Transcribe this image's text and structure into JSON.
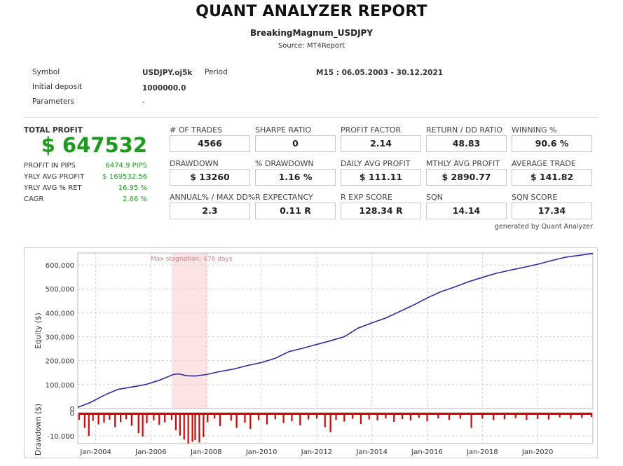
{
  "report": {
    "title": "QUANT ANALYZER REPORT",
    "strategy": "BreakingMagnum_USDJPY",
    "source": "Source: MT4Report"
  },
  "info": {
    "symbol_label": "Symbol",
    "symbol_value": "USDJPY.oj5k",
    "period_label": "Period",
    "period_value": "M15 : 06.05.2003 - 30.12.2021",
    "deposit_label": "Initial deposit",
    "deposit_value": "1000000.0",
    "params_label": "Parameters",
    "params_value": "-"
  },
  "summary": {
    "total_profit_label": "TOTAL PROFIT",
    "total_profit_value": "$ 647532",
    "rows": [
      {
        "label": "PROFIT IN PIPS",
        "value": "6474.9 PIPS"
      },
      {
        "label": "YRLY AVG PROFIT",
        "value": "$ 169532.56"
      },
      {
        "label": "YRLY AVG % RET",
        "value": "16.95 %"
      },
      {
        "label": "CAGR",
        "value": "2.66 %"
      }
    ]
  },
  "metrics": [
    {
      "label": "# OF TRADES",
      "value": "4566"
    },
    {
      "label": "SHARPE RATIO",
      "value": "0"
    },
    {
      "label": "PROFIT FACTOR",
      "value": "2.14"
    },
    {
      "label": "RETURN / DD RATIO",
      "value": "48.83"
    },
    {
      "label": "WINNING %",
      "value": "90.6 %"
    },
    {
      "label": "DRAWDOWN",
      "value": "$ 13260"
    },
    {
      "label": "% DRAWDOWN",
      "value": "1.16 %"
    },
    {
      "label": "DAILY AVG PROFIT",
      "value": "$ 111.11"
    },
    {
      "label": "MTHLY AVG PROFIT",
      "value": "$ 2890.77"
    },
    {
      "label": "AVERAGE TRADE",
      "value": "$ 141.82"
    },
    {
      "label": "ANNUAL% / MAX DD%",
      "value": "2.3"
    },
    {
      "label": "R EXPECTANCY",
      "value": "0.11 R"
    },
    {
      "label": "R EXP SCORE",
      "value": "128.34 R"
    },
    {
      "label": "SQN",
      "value": "14.14"
    },
    {
      "label": "SQN SCORE",
      "value": "17.34"
    }
  ],
  "generated_by": "generated by Quant Analyzer",
  "colors": {
    "profit_green": "#1e9a1e",
    "equity_line": "#2a2aa8",
    "drawdown_fill": "#e00000",
    "stagnation_band": "#fde3e3"
  },
  "chart_data": [
    {
      "type": "line",
      "ylabel": "Equity ($)",
      "ylim": [
        0,
        650000
      ],
      "yticks": [
        0,
        100000,
        200000,
        300000,
        400000,
        500000,
        600000
      ],
      "ytick_labels": [
        "0",
        "100,000",
        "200,000",
        "300,000",
        "400,000",
        "500,000",
        "600,000"
      ],
      "xlim": [
        2003.35,
        2022.0
      ],
      "grid": true,
      "annotation": {
        "text": "Max stagnation: 476 days",
        "start": 2006.75,
        "end": 2008.05
      },
      "x": [
        2003.35,
        2003.8,
        2004.3,
        2004.8,
        2005.3,
        2005.8,
        2006.3,
        2006.8,
        2007.0,
        2007.3,
        2007.6,
        2008.0,
        2008.5,
        2009.0,
        2009.5,
        2010.0,
        2010.5,
        2011.0,
        2011.5,
        2012.0,
        2012.5,
        2013.0,
        2013.5,
        2014.0,
        2014.5,
        2015.0,
        2015.5,
        2016.0,
        2016.5,
        2017.0,
        2017.5,
        2018.0,
        2018.5,
        2019.0,
        2019.5,
        2020.0,
        2020.5,
        2021.0,
        2021.5,
        2022.0
      ],
      "values": [
        5000,
        25000,
        55000,
        80000,
        90000,
        100000,
        118000,
        142000,
        145000,
        137000,
        136000,
        142000,
        155000,
        165000,
        180000,
        192000,
        210000,
        238000,
        252000,
        268000,
        283000,
        300000,
        336000,
        358000,
        378000,
        405000,
        432000,
        462000,
        488000,
        508000,
        530000,
        548000,
        565000,
        578000,
        590000,
        603000,
        618000,
        632000,
        640000,
        648000
      ]
    },
    {
      "type": "area",
      "ylabel": "Drawdown ($)",
      "ylim": [
        -13260,
        0
      ],
      "yticks": [
        0,
        -10000
      ],
      "ytick_labels": [
        "0",
        "-10,000"
      ],
      "xlim": [
        2003.35,
        2022.0
      ],
      "xticks": [
        2004,
        2006,
        2008,
        2010,
        2012,
        2014,
        2016,
        2018,
        2020
      ],
      "xtick_labels": [
        "Jan-2004",
        "Jan-2006",
        "Jan-2008",
        "Jan-2010",
        "Jan-2012",
        "Jan-2014",
        "Jan-2016",
        "Jan-2018",
        "Jan-2020"
      ],
      "x": [
        2003.4,
        2003.6,
        2003.75,
        2003.9,
        2004.1,
        2004.3,
        2004.5,
        2004.7,
        2004.9,
        2005.1,
        2005.3,
        2005.55,
        2005.7,
        2005.85,
        2006.1,
        2006.3,
        2006.5,
        2006.75,
        2006.9,
        2007.05,
        2007.2,
        2007.35,
        2007.5,
        2007.6,
        2007.75,
        2007.9,
        2008.05,
        2008.3,
        2008.5,
        2008.9,
        2009.1,
        2009.4,
        2009.6,
        2009.9,
        2010.2,
        2010.5,
        2010.8,
        2011.1,
        2011.4,
        2011.7,
        2012.0,
        2012.3,
        2012.5,
        2012.7,
        2013.0,
        2013.3,
        2013.6,
        2013.9,
        2014.2,
        2014.5,
        2014.8,
        2015.1,
        2015.4,
        2015.7,
        2016.0,
        2016.4,
        2016.8,
        2017.2,
        2017.6,
        2018.0,
        2018.4,
        2018.8,
        2019.2,
        2019.6,
        2020.0,
        2020.4,
        2020.8,
        2021.2,
        2021.6,
        2021.95
      ],
      "values": [
        -3000,
        -6500,
        -10000,
        -3500,
        -5000,
        -4200,
        -3000,
        -6200,
        -4000,
        -2800,
        -5600,
        -8800,
        -10200,
        -4500,
        -3300,
        -5200,
        -4100,
        -3000,
        -7500,
        -9800,
        -11500,
        -13260,
        -12500,
        -11800,
        -12800,
        -10500,
        -4000,
        -2500,
        -5800,
        -3400,
        -6500,
        -4300,
        -7000,
        -3200,
        -5000,
        -2800,
        -4400,
        -3600,
        -5400,
        -2900,
        -2500,
        -6200,
        -8300,
        -3100,
        -3800,
        -2600,
        -4800,
        -2900,
        -3300,
        -2400,
        -3900,
        -2700,
        -3300,
        -2200,
        -3600,
        -2400,
        -3000,
        -2600,
        -6500,
        -2500,
        -3200,
        -2800,
        -2300,
        -3100,
        -2700,
        -2900,
        -2000,
        -2600,
        -2200,
        -1800
      ]
    }
  ]
}
